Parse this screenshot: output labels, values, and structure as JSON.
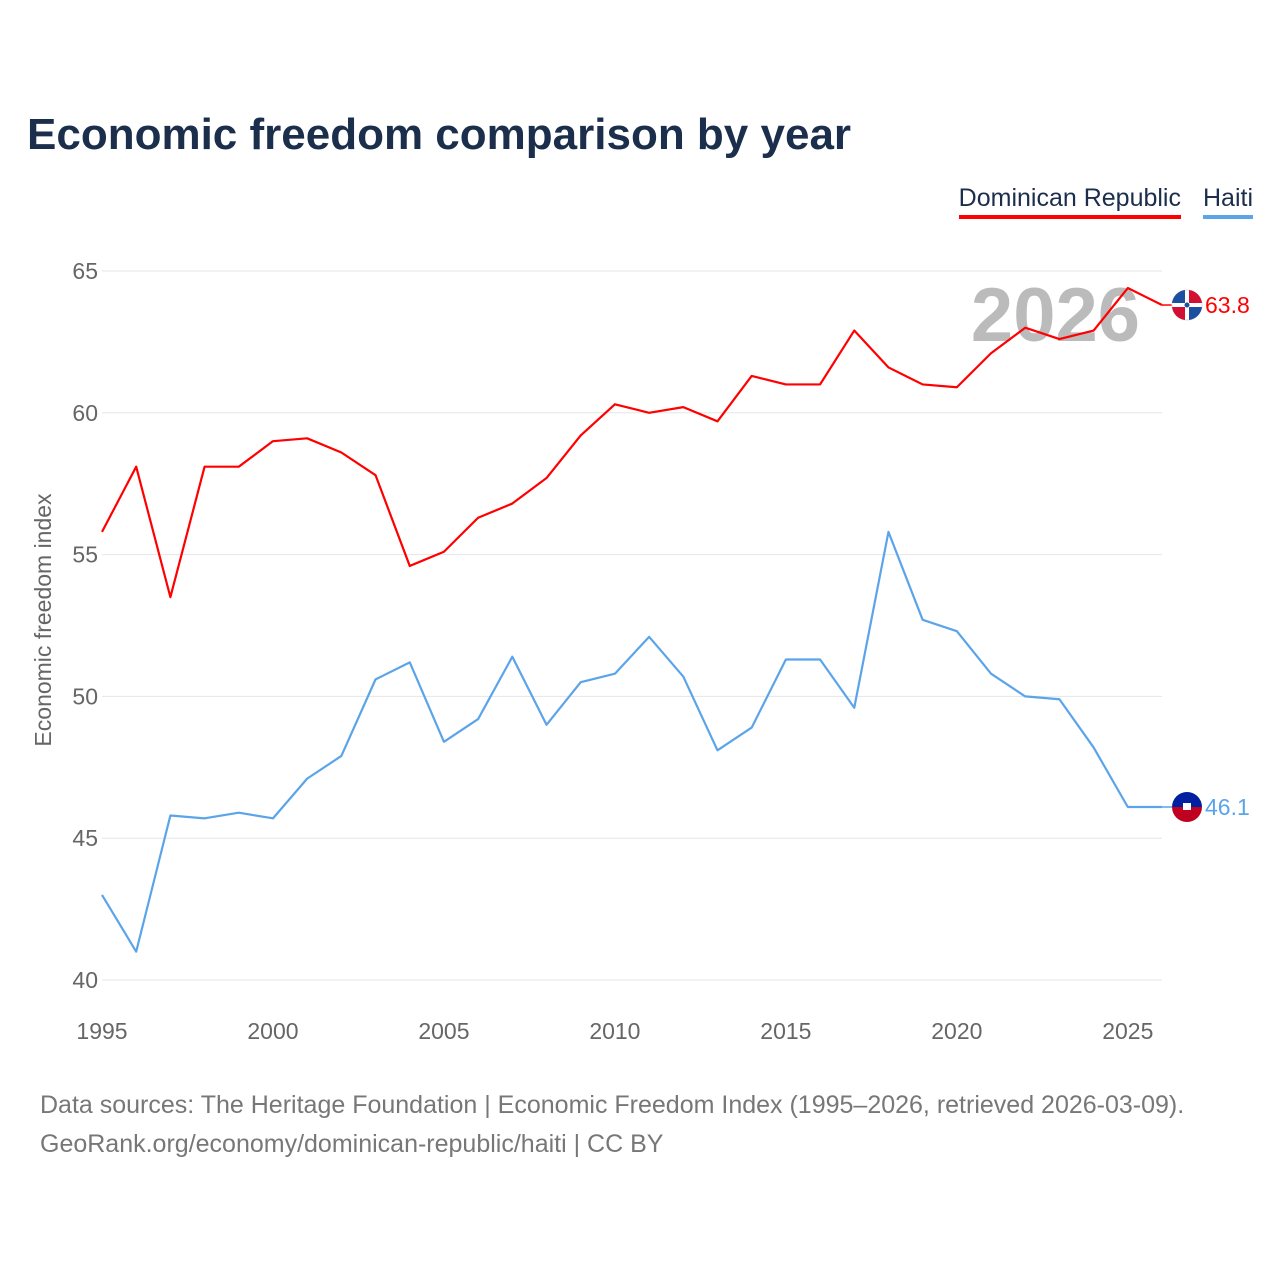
{
  "title": "Economic freedom comparison by year",
  "footer": {
    "line1": "Data sources: The Heritage Foundation | Economic Freedom Index (1995–2026, retrieved 2026-03-09).",
    "line2": "GeoRank.org/economy/dominican-republic/haiti | CC BY"
  },
  "chart_data": {
    "type": "line",
    "title": "Economic freedom comparison by year",
    "xlabel": "",
    "ylabel": "Economic freedom index",
    "xlim": [
      1995,
      2026
    ],
    "ylim": [
      40,
      65
    ],
    "xticks": [
      1995,
      2000,
      2005,
      2010,
      2015,
      2020,
      2025
    ],
    "yticks": [
      40,
      45,
      50,
      55,
      60,
      65
    ],
    "grid": true,
    "legend": "top-right",
    "watermark_year": "2026",
    "x": [
      1995,
      1996,
      1997,
      1998,
      1999,
      2000,
      2001,
      2002,
      2003,
      2004,
      2005,
      2006,
      2007,
      2008,
      2009,
      2010,
      2011,
      2012,
      2013,
      2014,
      2015,
      2016,
      2017,
      2018,
      2019,
      2020,
      2021,
      2022,
      2023,
      2024,
      2025,
      2026
    ],
    "series": [
      {
        "name": "Dominican Republic",
        "color": "#ff0000",
        "end_label": "63.8",
        "values": [
          55.8,
          58.1,
          53.5,
          58.1,
          58.1,
          59.0,
          59.1,
          58.6,
          57.8,
          54.6,
          55.1,
          56.3,
          56.8,
          57.7,
          59.2,
          60.3,
          60.0,
          60.2,
          59.7,
          61.3,
          61.0,
          61.0,
          62.9,
          61.6,
          61.0,
          60.9,
          62.1,
          63.0,
          62.6,
          62.9,
          64.4,
          63.8
        ]
      },
      {
        "name": "Haiti",
        "color": "#5ba4ea",
        "end_label": "46.1",
        "values": [
          43.0,
          41.0,
          45.8,
          45.7,
          45.9,
          45.7,
          47.1,
          47.9,
          50.6,
          51.2,
          48.4,
          49.2,
          51.4,
          49.0,
          50.5,
          50.8,
          52.1,
          50.7,
          48.1,
          48.9,
          51.3,
          51.3,
          49.6,
          55.8,
          52.7,
          52.3,
          50.8,
          50.0,
          49.9,
          48.2,
          46.1,
          46.1
        ]
      }
    ]
  }
}
